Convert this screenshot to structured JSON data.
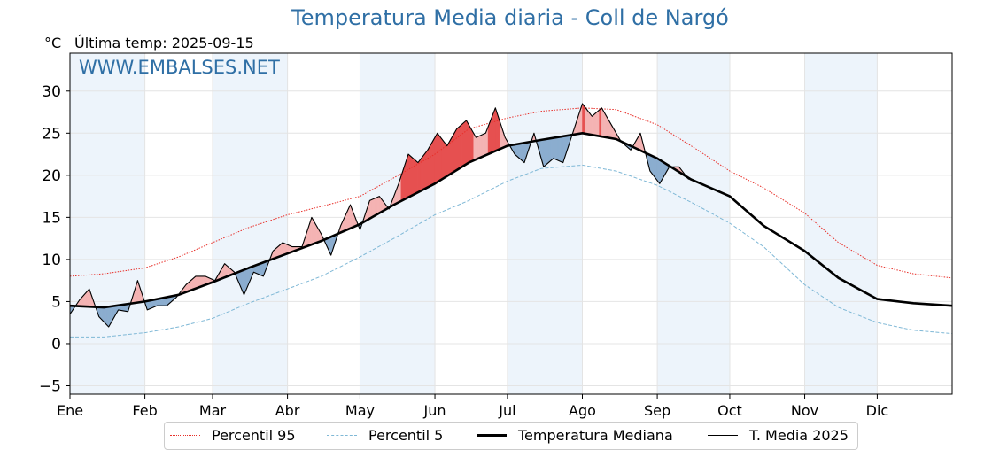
{
  "header": {
    "title": "Temperatura Media diaria - Coll de Nargó",
    "unit": "°C",
    "last_temp": "Última temp: 2025-09-15",
    "watermark": "WWW.EMBALSES.NET"
  },
  "legend": {
    "p95": "Percentil 95",
    "p5": "Percentil 5",
    "median": "Temperatura Mediana",
    "current": "T. Media 2025"
  },
  "colors": {
    "title": "#2f6fa5",
    "p95": "#e8302a",
    "p5": "#7fb8d6",
    "median": "#000000",
    "current": "#000000",
    "above_fill": "#f4b3b3",
    "above_strong": "#e65050",
    "below_fill": "#8badcf",
    "below_strong": "#2c68a8",
    "month_shade": "#edf4fb"
  },
  "chart_data": {
    "type": "line",
    "x_unit": "day of year",
    "ylim": [
      -6,
      34.5
    ],
    "xlim": [
      1,
      366
    ],
    "y_ticks": [
      -5,
      0,
      5,
      10,
      15,
      20,
      25,
      30
    ],
    "x_ticks": [
      {
        "label": "Ene",
        "day": 1
      },
      {
        "label": "Feb",
        "day": 32
      },
      {
        "label": "Mar",
        "day": 60
      },
      {
        "label": "Abr",
        "day": 91
      },
      {
        "label": "May",
        "day": 121
      },
      {
        "label": "Jun",
        "day": 152
      },
      {
        "label": "Jul",
        "day": 182
      },
      {
        "label": "Ago",
        "day": 213
      },
      {
        "label": "Sep",
        "day": 244
      },
      {
        "label": "Oct",
        "day": 274
      },
      {
        "label": "Nov",
        "day": 305
      },
      {
        "label": "Dic",
        "day": 335
      }
    ],
    "grid": true,
    "legend_position": "bottom",
    "series": [
      {
        "name": "Percentil 95",
        "style": "dotted",
        "x": [
          1,
          15,
          32,
          46,
          60,
          75,
          91,
          105,
          121,
          135,
          152,
          166,
          182,
          196,
          213,
          227,
          244,
          258,
          274,
          288,
          305,
          319,
          335,
          350,
          366
        ],
        "y": [
          8.0,
          8.3,
          9.0,
          10.3,
          12.0,
          13.8,
          15.3,
          16.3,
          17.5,
          19.7,
          22.5,
          25.5,
          26.8,
          27.6,
          28.0,
          27.8,
          26.0,
          23.5,
          20.5,
          18.5,
          15.5,
          12.0,
          9.3,
          8.3,
          7.8
        ]
      },
      {
        "name": "Percentil 5",
        "style": "dashed",
        "x": [
          1,
          15,
          32,
          46,
          60,
          75,
          91,
          105,
          121,
          135,
          152,
          166,
          182,
          196,
          213,
          227,
          244,
          258,
          274,
          288,
          305,
          319,
          335,
          350,
          366
        ],
        "y": [
          0.8,
          0.8,
          1.3,
          2.0,
          3.0,
          4.8,
          6.5,
          8.0,
          10.3,
          12.5,
          15.3,
          17.0,
          19.3,
          20.8,
          21.2,
          20.5,
          18.8,
          16.8,
          14.3,
          11.5,
          7.0,
          4.3,
          2.5,
          1.6,
          1.2
        ]
      },
      {
        "name": "Temperatura Mediana",
        "style": "thick",
        "x": [
          1,
          15,
          32,
          46,
          60,
          75,
          91,
          105,
          121,
          135,
          152,
          166,
          182,
          196,
          213,
          227,
          244,
          258,
          274,
          288,
          305,
          319,
          335,
          350,
          366
        ],
        "y": [
          4.5,
          4.3,
          5.0,
          5.8,
          7.3,
          9.0,
          10.7,
          12.2,
          14.2,
          16.5,
          19.0,
          21.5,
          23.5,
          24.2,
          25.0,
          24.3,
          22.0,
          19.5,
          17.5,
          14.0,
          11.0,
          7.8,
          5.3,
          4.8,
          4.5
        ]
      },
      {
        "name": "T. Media 2025",
        "style": "thin",
        "x": [
          1,
          5,
          9,
          13,
          17,
          21,
          25,
          29,
          33,
          37,
          41,
          45,
          49,
          53,
          57,
          61,
          65,
          69,
          73,
          77,
          81,
          85,
          89,
          93,
          97,
          101,
          105,
          109,
          113,
          117,
          121,
          125,
          129,
          133,
          137,
          141,
          145,
          149,
          153,
          157,
          161,
          165,
          169,
          173,
          177,
          181,
          185,
          189,
          193,
          197,
          201,
          205,
          209,
          213,
          217,
          221,
          225,
          229,
          233,
          237,
          241,
          245,
          249,
          253,
          257
        ],
        "y": [
          3.5,
          5.2,
          6.5,
          3.2,
          2.0,
          4.0,
          3.8,
          7.5,
          4.0,
          4.5,
          4.5,
          5.5,
          7.0,
          8.0,
          8.0,
          7.5,
          9.5,
          8.5,
          5.8,
          8.5,
          8.0,
          11.0,
          12.0,
          11.5,
          11.5,
          15.0,
          13.0,
          10.5,
          14.0,
          16.5,
          13.5,
          17.0,
          17.5,
          16.0,
          19.0,
          22.5,
          21.5,
          23.0,
          25.0,
          23.5,
          25.5,
          26.5,
          24.5,
          25.0,
          28.0,
          24.5,
          22.5,
          21.5,
          25.0,
          21.0,
          22.0,
          21.5,
          25.0,
          28.5,
          27.0,
          28.0,
          26.0,
          24.0,
          23.0,
          25.0,
          20.5,
          19.0,
          21.0,
          21.0,
          19.5
        ]
      }
    ]
  }
}
